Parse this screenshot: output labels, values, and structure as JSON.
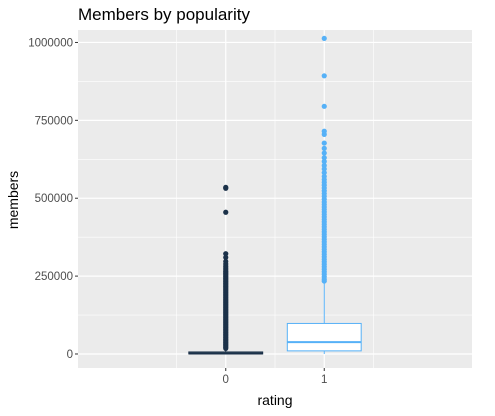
{
  "chart_data": {
    "type": "boxplot",
    "title": "Members by popularity",
    "xlabel": "rating",
    "ylabel": "members",
    "categories": [
      "0",
      "1"
    ],
    "ylim": [
      -45000,
      1040000
    ],
    "y_ticks": [
      0,
      250000,
      500000,
      750000,
      1000000
    ],
    "y_tick_labels": [
      "0",
      "250000",
      "500000",
      "750000",
      "1000000"
    ],
    "grid": true,
    "panel_background": "#ebebeb",
    "series": [
      {
        "category": "0",
        "color": "#1b3149",
        "box": {
          "q1": 300,
          "median": 1500,
          "q3": 6500,
          "whisker_low": 0,
          "whisker_high": 16000
        },
        "outliers": [
          535000,
          532000,
          455000,
          322000,
          310000,
          297000,
          289000,
          282000,
          276000,
          271000,
          266000,
          262000,
          258000,
          254000,
          250000,
          246000,
          242000,
          238000,
          234000,
          230000,
          226000,
          222000,
          218000,
          214000,
          210000,
          206000,
          202000,
          198000,
          194000,
          190000,
          186000,
          182000,
          178000,
          174000,
          170000,
          166000,
          162000,
          158000,
          154000,
          150000,
          146000,
          142000,
          138000,
          134000,
          130000,
          126000,
          122000,
          118000,
          114000,
          110000,
          106000,
          102000,
          98000,
          94000,
          90000,
          86000,
          82000,
          78000,
          74000,
          70000,
          66000,
          62000,
          58000,
          54000,
          50000,
          46000,
          42000,
          38000,
          34000,
          30000,
          26000,
          22000,
          18000
        ]
      },
      {
        "category": "1",
        "color": "#56b1f7",
        "box": {
          "q1": 10000,
          "median": 38000,
          "q3": 98000,
          "whisker_low": 0,
          "whisker_high": 228000
        },
        "outliers": [
          1013000,
          893000,
          795000,
          715000,
          705000,
          677000,
          660000,
          645000,
          630000,
          618000,
          605000,
          594000,
          582000,
          570000,
          560000,
          551000,
          542000,
          533000,
          524000,
          515000,
          506000,
          497000,
          488000,
          480000,
          472000,
          464000,
          456000,
          448000,
          440000,
          432000,
          424000,
          416000,
          408000,
          400000,
          392000,
          384000,
          376000,
          368000,
          360000,
          352000,
          344000,
          336000,
          328000,
          320000,
          312000,
          304000,
          296000,
          288000,
          280000,
          272000,
          264000,
          256000,
          248000,
          240000,
          234000
        ]
      }
    ]
  }
}
